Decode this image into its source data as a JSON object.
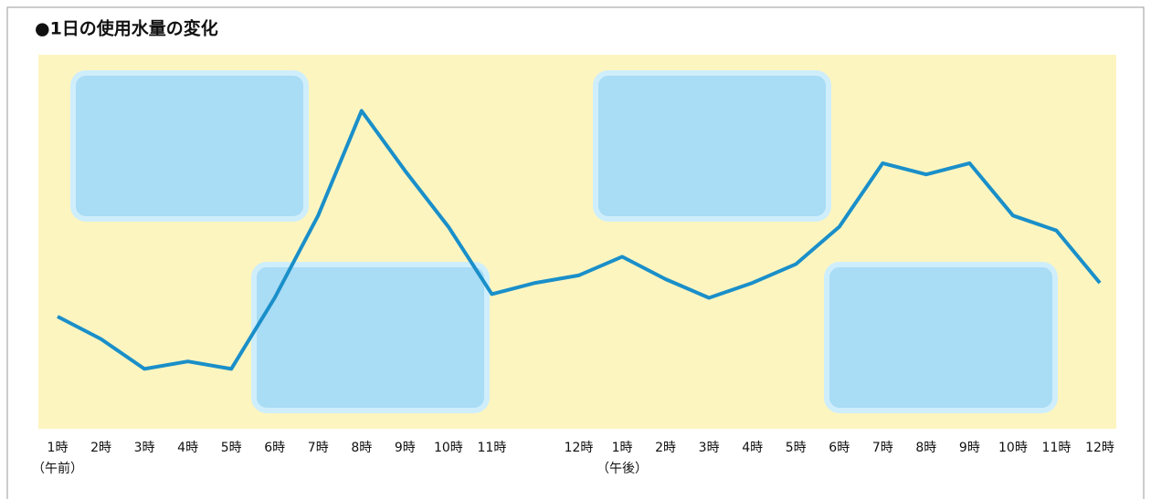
{
  "chart_data": {
    "type": "line",
    "title": "●1日の使用水量の変化",
    "categories": [
      "1時",
      "2時",
      "3時",
      "4時",
      "5時",
      "6時",
      "7時",
      "8時",
      "9時",
      "10時",
      "11時",
      null,
      "12時",
      "1時",
      "2時",
      "3時",
      "4時",
      "5時",
      "6時",
      "7時",
      "8時",
      "9時",
      "10時",
      "11時",
      "12時"
    ],
    "series": [
      {
        "color": "#1a8fc9",
        "values": [
          30,
          24,
          16,
          18,
          16,
          35,
          57,
          85,
          69,
          54,
          36,
          39,
          41,
          46,
          40,
          35,
          39,
          44,
          54,
          71,
          68,
          71,
          57,
          53,
          39
        ]
      }
    ],
    "ylim": [
      0,
      100
    ],
    "annotations": [
      "（午前）",
      "（午後）"
    ]
  }
}
